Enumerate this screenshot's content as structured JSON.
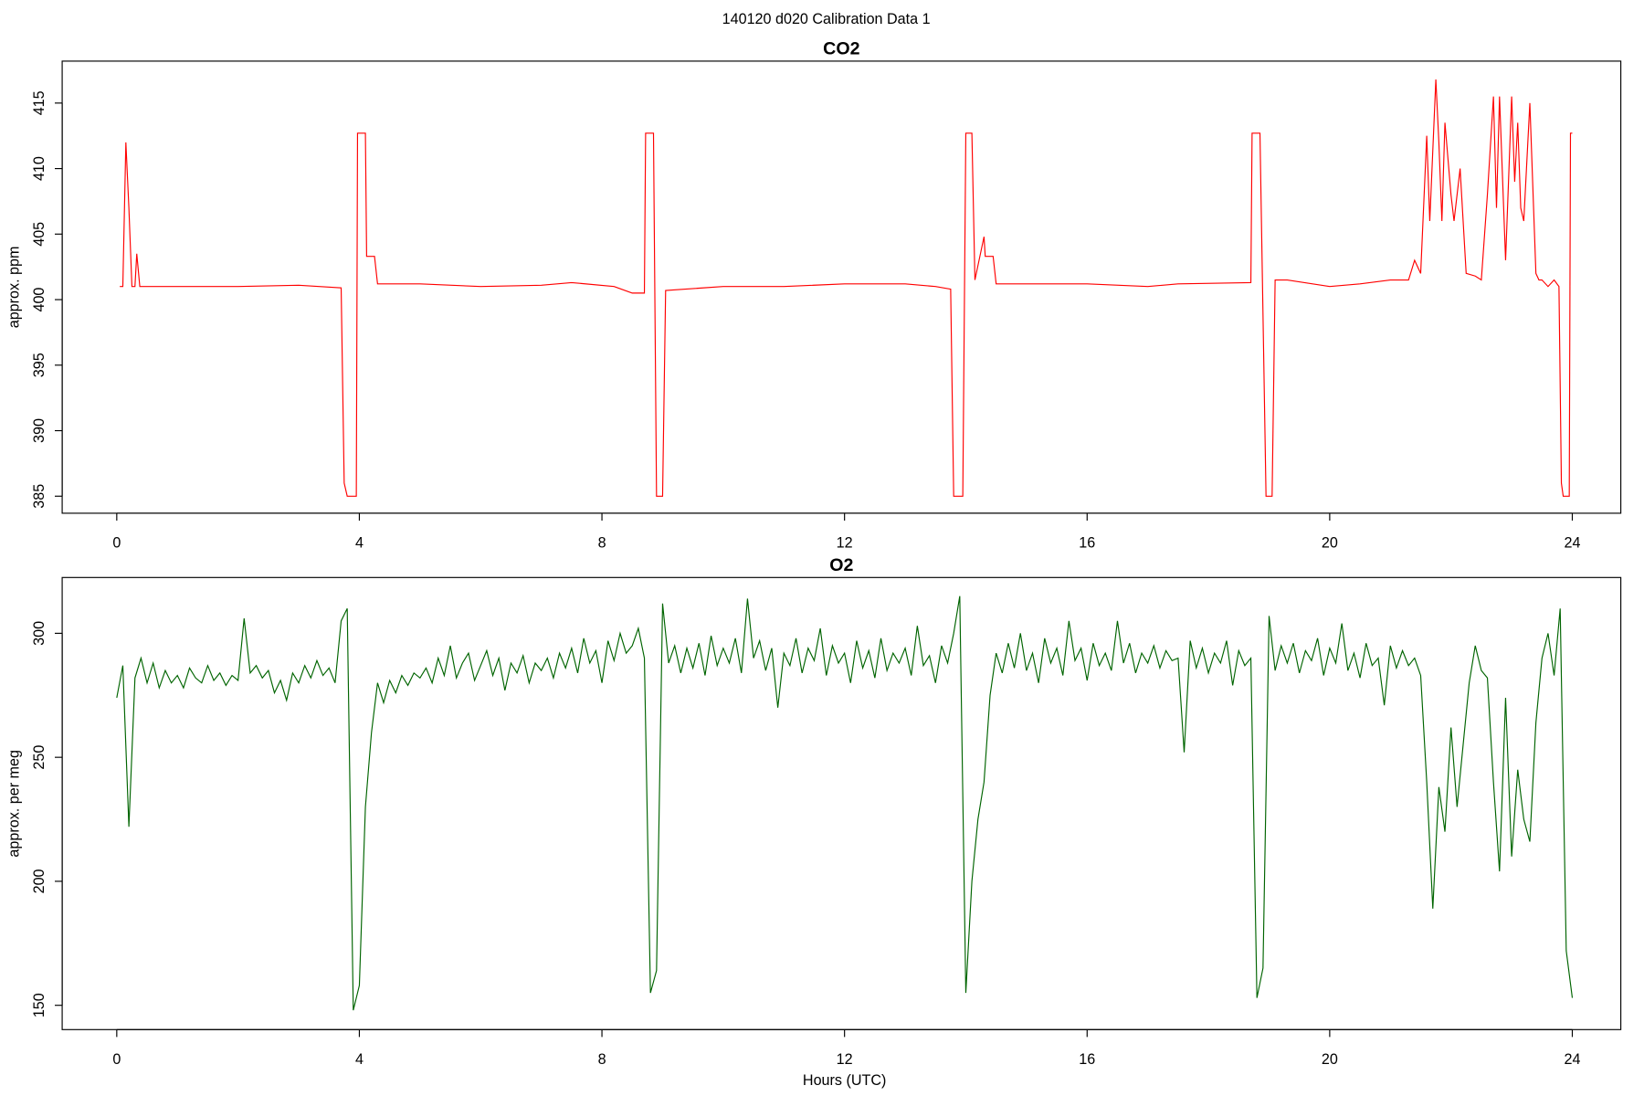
{
  "title": "140120   d020   Calibration Data 1",
  "chart_data": [
    {
      "type": "line",
      "title": "CO2",
      "y_label": "approx. ppm",
      "color": "#ff0000",
      "x": [
        0.05,
        0.1,
        0.15,
        0.2,
        0.25,
        0.3,
        0.33,
        0.38,
        1,
        2,
        3,
        3.7,
        3.75,
        3.8,
        3.95,
        3.97,
        4.1,
        4.12,
        4.25,
        4.3,
        5,
        6,
        7,
        7.5,
        8.2,
        8.5,
        8.7,
        8.72,
        8.85,
        8.9,
        9.0,
        9.05,
        10,
        11,
        12,
        13,
        13.5,
        13.75,
        13.8,
        13.95,
        14.0,
        14.1,
        14.15,
        14.3,
        14.32,
        14.45,
        14.5,
        15,
        16,
        17,
        17.5,
        18.7,
        18.72,
        18.85,
        18.95,
        19.05,
        19.1,
        19.3,
        20,
        20.5,
        21,
        21.3,
        21.4,
        21.5,
        21.6,
        21.65,
        21.75,
        21.8,
        21.85,
        21.9,
        22.0,
        22.05,
        22.15,
        22.25,
        22.4,
        22.5,
        22.6,
        22.7,
        22.75,
        22.8,
        22.9,
        23.0,
        23.05,
        23.1,
        23.15,
        23.2,
        23.3,
        23.4,
        23.45,
        23.5,
        23.6,
        23.7,
        23.78,
        23.82,
        23.85,
        23.95,
        23.97,
        24.0
      ],
      "values": [
        401,
        401,
        412,
        407,
        401,
        401,
        403.5,
        401,
        401,
        401,
        401.1,
        400.9,
        386,
        385,
        385,
        412.7,
        412.7,
        403.3,
        403.3,
        401.2,
        401.2,
        401,
        401.1,
        401.3,
        401,
        400.5,
        400.5,
        412.7,
        412.7,
        385,
        385,
        400.7,
        401,
        401,
        401.2,
        401.2,
        401,
        400.8,
        385,
        385,
        412.7,
        412.7,
        401.5,
        404.8,
        403.3,
        403.3,
        401.2,
        401.2,
        401.2,
        401,
        401.2,
        401.3,
        412.7,
        412.7,
        385,
        385,
        401.5,
        401.5,
        401,
        401.2,
        401.5,
        401.5,
        403,
        402,
        412.5,
        406,
        416.8,
        412,
        406,
        413.5,
        408,
        406,
        410,
        402,
        401.8,
        401.5,
        408,
        415.5,
        407,
        415.5,
        403,
        415.5,
        409,
        413.5,
        407,
        406,
        415,
        402,
        401.5,
        401.5,
        401,
        401.5,
        401,
        386,
        385,
        385,
        412.7,
        412.7
      ],
      "xlim": [
        -0.9,
        24.8
      ],
      "xticks": [
        0,
        4,
        8,
        12,
        16,
        20,
        24
      ],
      "ylim": [
        383.7,
        418.2
      ],
      "yticks": [
        385,
        390,
        395,
        400,
        405,
        410,
        415
      ]
    },
    {
      "type": "line",
      "title": "O2",
      "y_label": "approx. per meg",
      "x_label": "Hours (UTC)",
      "color": "#006400",
      "x": [
        0,
        0.1,
        0.2,
        0.3,
        0.4,
        0.5,
        0.6,
        0.7,
        0.8,
        0.9,
        1,
        1.1,
        1.2,
        1.3,
        1.4,
        1.5,
        1.6,
        1.7,
        1.8,
        1.9,
        2,
        2.1,
        2.2,
        2.3,
        2.4,
        2.5,
        2.6,
        2.7,
        2.8,
        2.9,
        3,
        3.1,
        3.2,
        3.3,
        3.4,
        3.5,
        3.6,
        3.7,
        3.8,
        3.9,
        4,
        4.1,
        4.2,
        4.3,
        4.4,
        4.5,
        4.6,
        4.7,
        4.8,
        4.9,
        5,
        5.1,
        5.2,
        5.3,
        5.4,
        5.5,
        5.6,
        5.7,
        5.8,
        5.9,
        6,
        6.1,
        6.2,
        6.3,
        6.4,
        6.5,
        6.6,
        6.7,
        6.8,
        6.9,
        7,
        7.1,
        7.2,
        7.3,
        7.4,
        7.5,
        7.6,
        7.7,
        7.8,
        7.9,
        8,
        8.1,
        8.2,
        8.3,
        8.4,
        8.5,
        8.6,
        8.7,
        8.8,
        8.9,
        9,
        9.1,
        9.2,
        9.3,
        9.4,
        9.5,
        9.6,
        9.7,
        9.8,
        9.9,
        10,
        10.1,
        10.2,
        10.3,
        10.4,
        10.5,
        10.6,
        10.7,
        10.8,
        10.9,
        11,
        11.1,
        11.2,
        11.3,
        11.4,
        11.5,
        11.6,
        11.7,
        11.8,
        11.9,
        12,
        12.1,
        12.2,
        12.3,
        12.4,
        12.5,
        12.6,
        12.7,
        12.8,
        12.9,
        13,
        13.1,
        13.2,
        13.3,
        13.4,
        13.5,
        13.6,
        13.7,
        13.8,
        13.9,
        14,
        14.1,
        14.2,
        14.3,
        14.4,
        14.5,
        14.6,
        14.7,
        14.8,
        14.9,
        15,
        15.1,
        15.2,
        15.3,
        15.4,
        15.5,
        15.6,
        15.7,
        15.8,
        15.9,
        16,
        16.1,
        16.2,
        16.3,
        16.4,
        16.5,
        16.6,
        16.7,
        16.8,
        16.9,
        17,
        17.1,
        17.2,
        17.3,
        17.4,
        17.5,
        17.6,
        17.7,
        17.8,
        17.9,
        18,
        18.1,
        18.2,
        18.3,
        18.4,
        18.5,
        18.6,
        18.7,
        18.8,
        18.9,
        19,
        19.1,
        19.2,
        19.3,
        19.4,
        19.5,
        19.6,
        19.7,
        19.8,
        19.9,
        20,
        20.1,
        20.2,
        20.3,
        20.4,
        20.5,
        20.6,
        20.7,
        20.8,
        20.9,
        21,
        21.1,
        21.2,
        21.3,
        21.4,
        21.5,
        21.6,
        21.7,
        21.8,
        21.9,
        22,
        22.1,
        22.2,
        22.3,
        22.4,
        22.5,
        22.6,
        22.7,
        22.8,
        22.9,
        23,
        23.1,
        23.2,
        23.3,
        23.4,
        23.5,
        23.6,
        23.7,
        23.8,
        23.9,
        24
      ],
      "values": [
        274,
        287,
        222,
        282,
        290,
        280,
        288,
        278,
        285,
        280,
        283,
        278,
        286,
        282,
        280,
        287,
        281,
        284,
        279,
        283,
        281,
        306,
        284,
        287,
        282,
        285,
        276,
        281,
        273,
        284,
        280,
        287,
        282,
        289,
        283,
        286,
        280,
        305,
        310,
        148,
        158,
        230,
        260,
        280,
        272,
        281,
        276,
        283,
        279,
        284,
        282,
        286,
        280,
        290,
        283,
        295,
        282,
        288,
        292,
        281,
        287,
        293,
        283,
        290,
        277,
        288,
        284,
        291,
        280,
        288,
        285,
        290,
        282,
        292,
        286,
        294,
        284,
        298,
        288,
        293,
        280,
        297,
        289,
        300,
        292,
        295,
        302,
        290,
        155,
        164,
        312,
        288,
        295,
        284,
        294,
        286,
        296,
        283,
        299,
        287,
        294,
        288,
        298,
        284,
        314,
        290,
        297,
        285,
        294,
        270,
        292,
        287,
        298,
        284,
        294,
        289,
        302,
        283,
        295,
        288,
        292,
        280,
        297,
        286,
        293,
        282,
        298,
        285,
        292,
        288,
        294,
        283,
        303,
        287,
        291,
        280,
        295,
        288,
        300,
        315,
        155,
        200,
        225,
        240,
        275,
        292,
        284,
        296,
        286,
        300,
        285,
        292,
        280,
        298,
        288,
        294,
        283,
        305,
        289,
        294,
        281,
        296,
        287,
        292,
        285,
        305,
        288,
        296,
        284,
        292,
        288,
        295,
        286,
        293,
        289,
        290,
        252,
        297,
        286,
        294,
        284,
        292,
        288,
        297,
        279,
        293,
        287,
        290,
        153,
        165,
        307,
        285,
        295,
        288,
        296,
        284,
        293,
        289,
        298,
        283,
        294,
        288,
        304,
        285,
        292,
        282,
        296,
        287,
        290,
        271,
        295,
        286,
        293,
        287,
        290,
        283,
        240,
        189,
        238,
        220,
        262,
        230,
        255,
        280,
        295,
        285,
        282,
        240,
        204,
        274,
        210,
        245,
        225,
        216,
        264,
        290,
        300,
        283,
        310,
        172,
        153
      ],
      "xlim": [
        -0.9,
        24.8
      ],
      "xticks": [
        0,
        4,
        8,
        12,
        16,
        20,
        24
      ],
      "ylim": [
        140.2,
        322.5
      ],
      "yticks": [
        150,
        200,
        250,
        300
      ]
    }
  ]
}
